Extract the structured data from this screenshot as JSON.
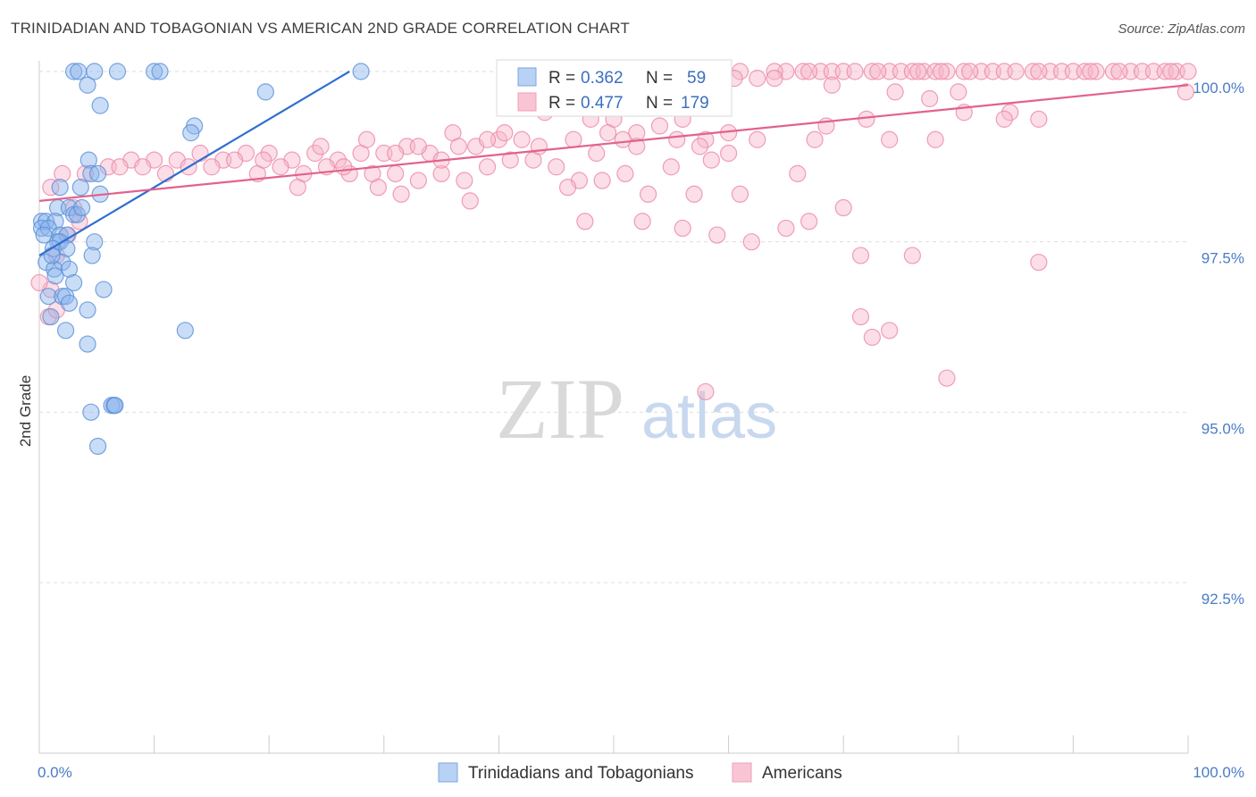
{
  "title": "TRINIDADIAN AND TOBAGONIAN VS AMERICAN 2ND GRADE CORRELATION CHART",
  "source": "Source: ZipAtlas.com",
  "watermark": {
    "zip": "ZIP",
    "atlas": "atlas"
  },
  "chart_data": {
    "type": "scatter",
    "ylabel": "2nd Grade",
    "xlabel": "",
    "xlim": [
      0,
      100
    ],
    "ylim": [
      90.0,
      100.3
    ],
    "x_tick_labels": [
      {
        "value": 0,
        "label": "0.0%"
      },
      {
        "value": 100,
        "label": "100.0%"
      }
    ],
    "y_ticks": [
      {
        "value": 100.0,
        "label": "100.0%"
      },
      {
        "value": 97.5,
        "label": "97.5%"
      },
      {
        "value": 95.0,
        "label": "95.0%"
      },
      {
        "value": 92.5,
        "label": "92.5%"
      }
    ],
    "legend": {
      "entries": [
        {
          "r_label": "R =",
          "r_value": "0.362",
          "n_label": "N =",
          "n_value": "59"
        },
        {
          "r_label": "R =",
          "r_value": "0.477",
          "n_label": "N =",
          "n_value": "179"
        }
      ]
    },
    "series": [
      {
        "name": "Trinidadians and Tobagonians",
        "color": "#8ab4ec",
        "edge": "#5a8fd8",
        "line_color": "#2f6fcf",
        "trend": {
          "x": [
            0,
            27
          ],
          "y": [
            97.3,
            100.0
          ]
        },
        "points": [
          [
            3,
            100
          ],
          [
            3.4,
            100
          ],
          [
            4.8,
            100
          ],
          [
            6.8,
            100
          ],
          [
            10,
            100
          ],
          [
            10.5,
            100
          ],
          [
            28,
            100
          ],
          [
            4.2,
            99.8
          ],
          [
            19.7,
            99.7
          ],
          [
            5.3,
            99.5
          ],
          [
            13.5,
            99.2
          ],
          [
            13.2,
            99.1
          ],
          [
            4.3,
            98.7
          ],
          [
            4.5,
            98.5
          ],
          [
            5.1,
            98.5
          ],
          [
            1.8,
            98.3
          ],
          [
            3.6,
            98.3
          ],
          [
            5.3,
            98.2
          ],
          [
            1.6,
            98.0
          ],
          [
            2.6,
            98.0
          ],
          [
            3.0,
            97.9
          ],
          [
            3.3,
            97.9
          ],
          [
            3.7,
            98.0
          ],
          [
            0.2,
            97.8
          ],
          [
            0.6,
            97.8
          ],
          [
            1.4,
            97.8
          ],
          [
            0.2,
            97.7
          ],
          [
            0.8,
            97.7
          ],
          [
            0.4,
            97.6
          ],
          [
            1.8,
            97.6
          ],
          [
            2.4,
            97.6
          ],
          [
            1.6,
            97.5
          ],
          [
            1.8,
            97.5
          ],
          [
            4.8,
            97.5
          ],
          [
            1.2,
            97.4
          ],
          [
            2.4,
            97.4
          ],
          [
            4.6,
            97.3
          ],
          [
            0.6,
            97.2
          ],
          [
            2.0,
            97.2
          ],
          [
            1.3,
            97.1
          ],
          [
            2.6,
            97.1
          ],
          [
            1.4,
            97.0
          ],
          [
            3.0,
            96.9
          ],
          [
            5.6,
            96.8
          ],
          [
            0.8,
            96.7
          ],
          [
            2.0,
            96.7
          ],
          [
            2.3,
            96.7
          ],
          [
            2.6,
            96.6
          ],
          [
            4.2,
            96.5
          ],
          [
            1.0,
            96.4
          ],
          [
            2.3,
            96.2
          ],
          [
            12.7,
            96.2
          ],
          [
            4.2,
            96.0
          ],
          [
            6.3,
            95.1
          ],
          [
            6.5,
            95.1
          ],
          [
            4.5,
            95.0
          ],
          [
            5.1,
            94.5
          ],
          [
            6.6,
            95.1
          ],
          [
            1.1,
            97.3
          ]
        ]
      },
      {
        "name": "Americans",
        "color": "#f7b6ca",
        "edge": "#ec87a6",
        "line_color": "#e2628b",
        "trend": {
          "x": [
            0,
            100
          ],
          "y": [
            98.1,
            99.8
          ]
        },
        "points": [
          [
            61,
            100
          ],
          [
            65,
            100
          ],
          [
            66.5,
            100
          ],
          [
            68,
            100
          ],
          [
            69,
            100
          ],
          [
            70,
            100
          ],
          [
            71,
            100
          ],
          [
            72.5,
            100
          ],
          [
            74,
            100
          ],
          [
            75,
            100
          ],
          [
            76,
            100
          ],
          [
            77,
            100
          ],
          [
            78,
            100
          ],
          [
            79,
            100
          ],
          [
            80.5,
            100
          ],
          [
            82,
            100
          ],
          [
            83,
            100
          ],
          [
            84,
            100
          ],
          [
            85,
            100
          ],
          [
            86.5,
            100
          ],
          [
            88,
            100
          ],
          [
            89,
            100
          ],
          [
            90,
            100
          ],
          [
            91,
            100
          ],
          [
            92,
            100
          ],
          [
            93.5,
            100
          ],
          [
            95,
            100
          ],
          [
            96,
            100
          ],
          [
            97,
            100
          ],
          [
            98,
            100
          ],
          [
            99,
            100
          ],
          [
            100,
            100
          ],
          [
            81,
            100
          ],
          [
            73,
            100
          ],
          [
            67,
            100
          ],
          [
            87,
            100
          ],
          [
            94,
            100
          ],
          [
            64,
            100
          ],
          [
            59,
            100
          ],
          [
            76.5,
            100
          ],
          [
            98.5,
            100
          ],
          [
            91.5,
            100
          ],
          [
            78.5,
            100
          ],
          [
            62.5,
            99.9
          ],
          [
            64,
            99.9
          ],
          [
            50,
            100
          ],
          [
            54.5,
            99.9
          ],
          [
            58.5,
            99.8
          ],
          [
            60.5,
            99.9
          ],
          [
            69,
            99.8
          ],
          [
            74.5,
            99.7
          ],
          [
            77.5,
            99.6
          ],
          [
            80,
            99.7
          ],
          [
            84.5,
            99.4
          ],
          [
            87,
            99.3
          ],
          [
            99.8,
            99.7
          ],
          [
            44,
            99.4
          ],
          [
            48,
            99.3
          ],
          [
            50,
            99.3
          ],
          [
            52,
            99.1
          ],
          [
            54,
            99.2
          ],
          [
            56,
            99.3
          ],
          [
            58,
            99.0
          ],
          [
            60,
            99.1
          ],
          [
            42,
            99.0
          ],
          [
            40,
            99.0
          ],
          [
            38,
            98.9
          ],
          [
            36,
            99.1
          ],
          [
            34,
            98.8
          ],
          [
            32,
            98.9
          ],
          [
            30,
            98.8
          ],
          [
            28,
            98.8
          ],
          [
            26,
            98.7
          ],
          [
            24,
            98.8
          ],
          [
            22,
            98.7
          ],
          [
            20,
            98.8
          ],
          [
            18,
            98.8
          ],
          [
            16,
            98.7
          ],
          [
            14,
            98.8
          ],
          [
            12,
            98.7
          ],
          [
            10,
            98.7
          ],
          [
            8,
            98.7
          ],
          [
            6,
            98.6
          ],
          [
            4,
            98.5
          ],
          [
            2,
            98.5
          ],
          [
            1,
            98.3
          ],
          [
            3,
            98.0
          ],
          [
            3.5,
            97.8
          ],
          [
            2.5,
            97.6
          ],
          [
            1.5,
            97.3
          ],
          [
            1,
            96.8
          ],
          [
            0.8,
            96.4
          ],
          [
            1.5,
            96.5
          ],
          [
            0,
            96.9
          ],
          [
            7,
            98.6
          ],
          [
            9,
            98.6
          ],
          [
            11,
            98.5
          ],
          [
            13,
            98.6
          ],
          [
            15,
            98.6
          ],
          [
            17,
            98.7
          ],
          [
            19,
            98.5
          ],
          [
            21,
            98.6
          ],
          [
            23,
            98.5
          ],
          [
            25,
            98.6
          ],
          [
            27,
            98.5
          ],
          [
            29,
            98.5
          ],
          [
            31,
            98.5
          ],
          [
            33,
            98.4
          ],
          [
            35,
            98.5
          ],
          [
            37,
            98.4
          ],
          [
            39,
            98.6
          ],
          [
            41,
            98.7
          ],
          [
            43,
            98.7
          ],
          [
            45,
            98.6
          ],
          [
            47,
            98.4
          ],
          [
            49,
            98.4
          ],
          [
            51,
            98.5
          ],
          [
            53,
            98.2
          ],
          [
            22.5,
            98.3
          ],
          [
            29.5,
            98.3
          ],
          [
            31.5,
            98.2
          ],
          [
            37.5,
            98.1
          ],
          [
            46,
            98.3
          ],
          [
            57,
            98.2
          ],
          [
            61,
            98.2
          ],
          [
            47.5,
            97.8
          ],
          [
            52.5,
            97.8
          ],
          [
            56,
            97.7
          ],
          [
            59,
            97.6
          ],
          [
            62,
            97.5
          ],
          [
            65,
            97.7
          ],
          [
            67,
            97.8
          ],
          [
            70,
            98.0
          ],
          [
            71.5,
            97.3
          ],
          [
            76,
            97.3
          ],
          [
            87,
            97.2
          ],
          [
            71.5,
            96.4
          ],
          [
            72.5,
            96.1
          ],
          [
            74,
            96.2
          ],
          [
            79,
            95.5
          ],
          [
            58,
            95.3
          ],
          [
            36.5,
            98.9
          ],
          [
            40.5,
            99.1
          ],
          [
            43.5,
            98.9
          ],
          [
            46.5,
            99.0
          ],
          [
            49.5,
            99.1
          ],
          [
            55.5,
            99.0
          ],
          [
            57.5,
            98.9
          ],
          [
            60,
            98.8
          ],
          [
            62.5,
            99.0
          ],
          [
            67.5,
            99.0
          ],
          [
            68.5,
            99.2
          ],
          [
            72,
            99.3
          ],
          [
            74,
            99.0
          ],
          [
            78,
            99.0
          ],
          [
            80.5,
            99.4
          ],
          [
            84,
            99.3
          ],
          [
            50.8,
            99.0
          ],
          [
            39,
            99.0
          ],
          [
            48.5,
            98.8
          ],
          [
            52,
            98.9
          ],
          [
            55,
            98.6
          ],
          [
            58.5,
            98.7
          ],
          [
            66,
            98.5
          ],
          [
            35,
            98.7
          ],
          [
            33,
            98.9
          ],
          [
            31,
            98.8
          ],
          [
            28.5,
            99.0
          ],
          [
            26.5,
            98.6
          ],
          [
            24.5,
            98.9
          ],
          [
            19.5,
            98.7
          ]
        ]
      }
    ]
  }
}
